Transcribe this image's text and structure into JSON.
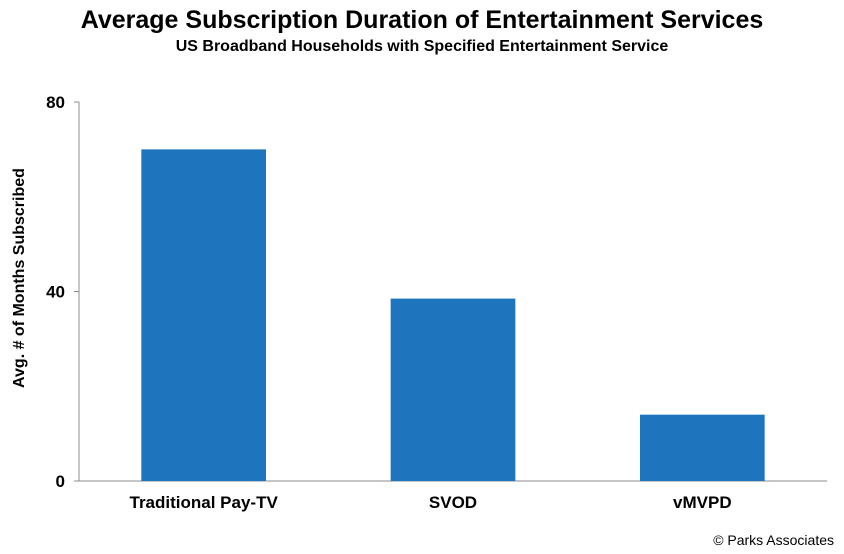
{
  "chart_data": {
    "type": "bar",
    "title": "Average Subscription Duration of Entertainment Services",
    "subtitle": "US Broadband Households with Specified Entertainment Service",
    "xlabel": "",
    "ylabel": "Avg. # of Months Subscribed",
    "categories": [
      "Traditional Pay-TV",
      "SVOD",
      "vMVPD"
    ],
    "values": [
      70,
      38.5,
      14
    ],
    "ylim": [
      0,
      80
    ],
    "yticks": [
      0,
      40,
      80
    ],
    "grid": false,
    "legend": "none",
    "bar_color": "#1f74be"
  },
  "source": "© Parks Associates"
}
